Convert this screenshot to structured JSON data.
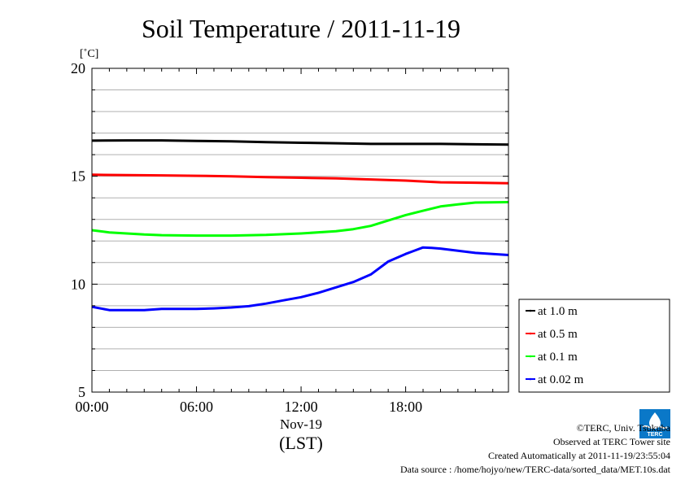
{
  "chart_data": {
    "type": "line",
    "title": "Soil Temperature / 2011-11-19",
    "ylabel": "[˚C]",
    "xlabel_date": "Nov-19",
    "xlabel_tz": "(LST)",
    "x_unit": "hours",
    "xlim": [
      0,
      23.9
    ],
    "ylim": [
      5,
      20
    ],
    "y_ticks": [
      5,
      10,
      15,
      20
    ],
    "y_tick_labels": [
      "5",
      "10",
      "15",
      "20"
    ],
    "x_ticks": [
      0,
      6,
      12,
      18
    ],
    "x_tick_labels": [
      "00:00",
      "06:00",
      "12:00",
      "18:00"
    ],
    "grid": true,
    "legend_position": "lower-right",
    "series": [
      {
        "name": "at 1.0 m",
        "color": "#000000",
        "x": [
          0,
          2,
          4,
          6,
          8,
          10,
          12,
          14,
          16,
          18,
          20,
          22,
          23.9
        ],
        "y": [
          16.65,
          16.66,
          16.66,
          16.64,
          16.62,
          16.58,
          16.55,
          16.53,
          16.5,
          16.5,
          16.5,
          16.48,
          16.47
        ]
      },
      {
        "name": "at 0.5 m",
        "color": "#ff0000",
        "x": [
          0,
          2,
          4,
          6,
          8,
          10,
          12,
          14,
          16,
          18,
          20,
          22,
          23.9
        ],
        "y": [
          15.07,
          15.05,
          15.04,
          15.02,
          15.0,
          14.96,
          14.93,
          14.9,
          14.85,
          14.8,
          14.72,
          14.7,
          14.68
        ]
      },
      {
        "name": "at 0.1 m",
        "color": "#00ff00",
        "x": [
          0,
          1,
          2,
          3,
          4,
          6,
          8,
          10,
          12,
          14,
          15,
          16,
          17,
          18,
          19,
          20,
          21,
          22,
          23.9
        ],
        "y": [
          12.5,
          12.4,
          12.35,
          12.3,
          12.27,
          12.25,
          12.25,
          12.28,
          12.35,
          12.45,
          12.55,
          12.7,
          12.95,
          13.2,
          13.4,
          13.6,
          13.7,
          13.78,
          13.8
        ]
      },
      {
        "name": "at 0.02 m",
        "color": "#0000ff",
        "x": [
          0,
          1,
          2,
          3,
          4,
          5,
          6,
          7,
          8,
          9,
          10,
          11,
          12,
          13,
          14,
          15,
          16,
          17,
          18,
          19,
          19.5,
          20,
          21,
          22,
          23.9
        ],
        "y": [
          8.95,
          8.8,
          8.8,
          8.8,
          8.85,
          8.85,
          8.85,
          8.88,
          8.92,
          8.98,
          9.1,
          9.25,
          9.4,
          9.6,
          9.85,
          10.1,
          10.45,
          11.05,
          11.4,
          11.7,
          11.68,
          11.65,
          11.55,
          11.45,
          11.35
        ]
      }
    ]
  },
  "footer": {
    "copyright": "©TERC, Univ. Tsukuba",
    "observed": "Observed at TERC Tower site",
    "created": "Created Automatically at 2011-11-19/23:55:04",
    "source": "Data source : /home/hojyo/new/TERC-data/sorted_data/MET.10s.dat",
    "logo_text": "TERC"
  }
}
